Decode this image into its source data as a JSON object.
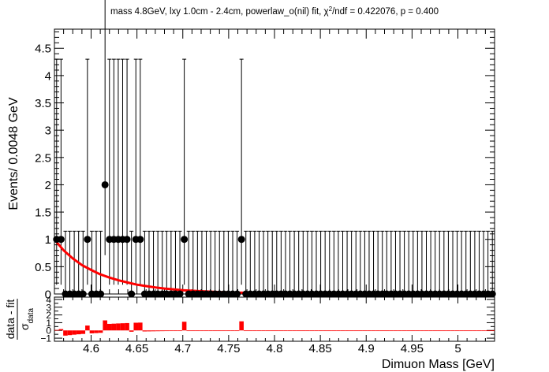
{
  "chart_data": {
    "type": "scatter",
    "title": "mass 4.8GeV, lxy 1.0cm - 2.4cm, powerlaw_o(nil) fit, χ²/ndf = 0.422076, p = 0.400",
    "title_parts": {
      "pre": "mass 4.8GeV, lxy 1.0cm - 2.4cm, powerlaw_o(nil) fit, χ",
      "sup": "2",
      "post": "/ndf = 0.422076, p = 0.400"
    },
    "xlabel": "Dimuon Mass [GeV]",
    "ylabel": "Events/ 0.0048 GeV",
    "xlim": [
      4.56,
      5.04
    ],
    "ylim": [
      0,
      4.85
    ],
    "x_ticks": [
      "4.6",
      "4.65",
      "4.7",
      "4.75",
      "4.8",
      "4.85",
      "4.9",
      "4.95",
      "5"
    ],
    "y_ticks": [
      "0",
      "0.5",
      "1",
      "1.5",
      "2",
      "2.5",
      "3",
      "3.5",
      "4",
      "4.5"
    ],
    "bin_width": 0.0048,
    "x_first": 4.5624,
    "y_values": [
      1,
      1,
      0,
      0,
      0,
      0,
      0,
      1,
      0,
      0,
      0,
      2,
      1,
      1,
      1,
      1,
      1,
      0,
      1,
      1,
      0,
      0,
      0,
      0,
      0,
      0,
      0,
      0,
      0,
      1,
      0,
      0,
      0,
      0,
      0,
      0,
      0,
      0,
      0,
      0,
      0,
      0,
      1,
      0,
      0,
      0,
      0,
      0,
      0,
      0,
      0,
      0,
      0,
      0,
      0,
      0,
      0,
      0,
      0,
      0,
      0,
      0,
      0,
      0,
      0,
      0,
      0,
      0,
      0,
      0,
      0,
      0,
      0,
      0,
      0,
      0,
      0,
      0,
      0,
      0,
      0,
      0,
      0,
      0,
      0,
      0,
      0,
      0,
      0,
      0,
      0,
      0,
      0,
      0,
      0,
      0,
      0,
      0,
      0,
      0
    ],
    "error_bars": {
      "count_0": [
        0,
        1.15
      ],
      "count_1": [
        0.83,
        3.3
      ],
      "count_2": [
        1.29,
        4.64
      ]
    },
    "fit": {
      "name": "powerlaw_o(nil)",
      "color": "#ff0000",
      "x": [
        4.5624,
        4.57,
        4.58,
        4.59,
        4.6,
        4.61,
        4.62,
        4.63,
        4.64,
        4.65,
        4.66,
        4.67,
        4.68,
        4.69,
        4.7,
        4.72,
        4.74,
        4.76,
        4.78,
        4.8,
        4.85,
        4.9,
        4.95,
        5.0,
        5.0376
      ],
      "y": [
        0.95,
        0.8,
        0.65,
        0.53,
        0.44,
        0.36,
        0.3,
        0.25,
        0.21,
        0.17,
        0.145,
        0.12,
        0.1,
        0.085,
        0.07,
        0.05,
        0.035,
        0.025,
        0.018,
        0.013,
        0.006,
        0.003,
        0.0015,
        0.0008,
        0.0005
      ]
    },
    "residuals": {
      "ylabel_num": "data - fit",
      "ylabel_den": "σ",
      "ylabel_den_sub": "data",
      "ylim": [
        -1.4,
        4.3
      ],
      "y_ticks": [
        "−1",
        "0",
        "1",
        "2",
        "3",
        "4"
      ],
      "color": "#ff0000"
    },
    "grid": false,
    "legend": "none"
  }
}
